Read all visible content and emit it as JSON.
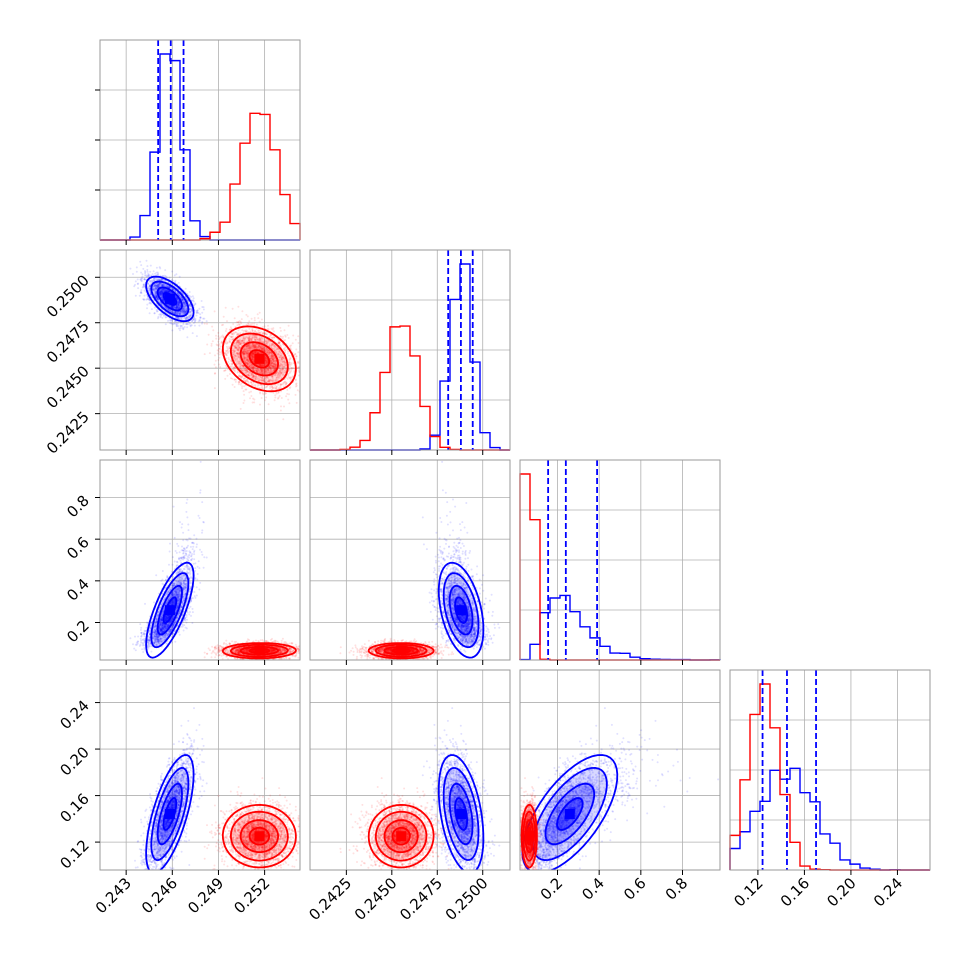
{
  "chart_data": {
    "type": "corner",
    "description_colors": {
      "series_a": "#0000ff",
      "series_b": "#ff0000"
    },
    "grid": true,
    "parameters": [
      {
        "range": [
          0.2413,
          0.2543
        ],
        "ticks": [
          0.243,
          0.246,
          0.249,
          0.252
        ],
        "tick_labels": [
          "0.243",
          "0.246",
          "0.249",
          "0.252"
        ]
      },
      {
        "range": [
          0.2405,
          0.2515
        ],
        "ticks": [
          0.2425,
          0.245,
          0.2475,
          0.25
        ],
        "tick_labels": [
          "0.2425",
          "0.2450",
          "0.2475",
          "0.2500"
        ]
      },
      {
        "range": [
          0.02,
          0.98
        ],
        "ticks": [
          0.2,
          0.4,
          0.6,
          0.8
        ],
        "tick_labels": [
          "0.2",
          "0.4",
          "0.6",
          "0.8"
        ]
      },
      {
        "range": [
          0.096,
          0.268
        ],
        "ticks": [
          0.12,
          0.16,
          0.2,
          0.24
        ],
        "tick_labels": [
          "0.12",
          "0.16",
          "0.20",
          "0.24"
        ]
      }
    ],
    "series": [
      {
        "color": "#0000ff",
        "means": [
          0.24585,
          0.2488,
          0.24,
          0.145
        ],
        "sds": [
          0.00075,
          0.0006,
          0.1,
          0.022
        ],
        "skew_param_2": true,
        "correlations": [
          [
            0,
            2,
            0.75
          ],
          [
            0,
            3,
            0.55
          ],
          [
            2,
            3,
            0.7
          ],
          [
            1,
            2,
            0.15
          ],
          [
            1,
            3,
            0.1
          ],
          [
            0,
            1,
            -0.6
          ]
        ],
        "quantile_lines": [
          [
            0.24508,
            0.2459,
            0.24673
          ],
          [
            0.2481,
            0.2488,
            0.24945
          ],
          [
            0.155,
            0.24,
            0.39
          ],
          [
            0.124,
            0.145,
            0.17
          ]
        ],
        "hist_peak_bin_value": [
          0.2457,
          0.249,
          0.18,
          0.142
        ]
      },
      {
        "color": "#ff0000",
        "means": [
          0.2517,
          0.2455,
          0.065,
          0.125
        ],
        "sds": [
          0.00115,
          0.00085,
          0.018,
          0.013
        ],
        "skew_param_2": false,
        "correlations": [
          [
            0,
            1,
            -0.3
          ],
          [
            0,
            2,
            0.05
          ],
          [
            1,
            3,
            0.2
          ]
        ],
        "quantile_lines": [],
        "hist_peak_bin_value": [
          0.2518,
          0.2455,
          0.04,
          0.122
        ]
      }
    ]
  }
}
